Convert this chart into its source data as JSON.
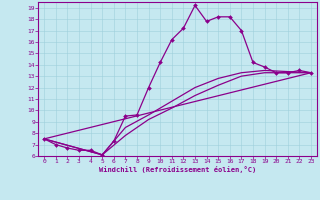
{
  "xlabel": "Windchill (Refroidissement éolien,°C)",
  "background_color": "#c5e8f0",
  "line_color": "#8b008b",
  "xlim": [
    -0.5,
    23.5
  ],
  "ylim": [
    6,
    19.5
  ],
  "xticks": [
    0,
    1,
    2,
    3,
    4,
    5,
    6,
    7,
    8,
    9,
    10,
    11,
    12,
    13,
    14,
    15,
    16,
    17,
    18,
    19,
    20,
    21,
    22,
    23
  ],
  "yticks": [
    6,
    7,
    8,
    9,
    10,
    11,
    12,
    13,
    14,
    15,
    16,
    17,
    18,
    19
  ],
  "series1": [
    [
      0,
      7.5
    ],
    [
      1,
      7.0
    ],
    [
      2,
      6.7
    ],
    [
      3,
      6.5
    ],
    [
      4,
      6.5
    ],
    [
      5,
      6.1
    ],
    [
      6,
      7.3
    ],
    [
      7,
      9.5
    ],
    [
      8,
      9.6
    ],
    [
      9,
      12.0
    ],
    [
      10,
      14.2
    ],
    [
      11,
      16.2
    ],
    [
      12,
      17.2
    ],
    [
      13,
      19.2
    ],
    [
      14,
      17.8
    ],
    [
      15,
      18.2
    ],
    [
      16,
      18.2
    ],
    [
      17,
      17.0
    ],
    [
      18,
      14.2
    ],
    [
      19,
      13.8
    ],
    [
      20,
      13.3
    ],
    [
      21,
      13.3
    ],
    [
      22,
      13.5
    ],
    [
      23,
      13.3
    ]
  ],
  "series2": [
    [
      0,
      7.5
    ],
    [
      23,
      13.3
    ]
  ],
  "series3": [
    [
      0,
      7.5
    ],
    [
      5,
      6.1
    ],
    [
      7,
      7.8
    ],
    [
      9,
      9.2
    ],
    [
      11,
      10.2
    ],
    [
      13,
      11.3
    ],
    [
      15,
      12.2
    ],
    [
      17,
      13.0
    ],
    [
      19,
      13.3
    ],
    [
      21,
      13.3
    ],
    [
      23,
      13.3
    ]
  ],
  "series4": [
    [
      0,
      7.5
    ],
    [
      5,
      6.1
    ],
    [
      7,
      8.5
    ],
    [
      9,
      9.6
    ],
    [
      11,
      10.8
    ],
    [
      13,
      12.0
    ],
    [
      15,
      12.8
    ],
    [
      17,
      13.3
    ],
    [
      19,
      13.5
    ],
    [
      21,
      13.4
    ],
    [
      23,
      13.3
    ]
  ]
}
